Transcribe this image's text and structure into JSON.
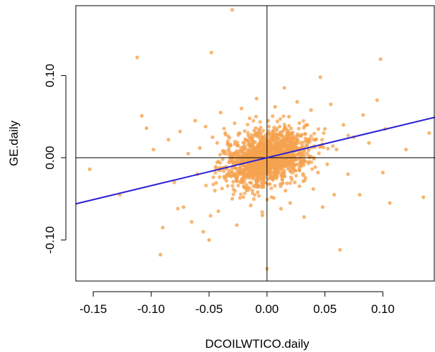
{
  "chart_data": {
    "type": "scatter",
    "title": "",
    "xlabel": "DCOILWTICO.daily",
    "ylabel": "GE.daily",
    "xlim": [
      -0.165,
      0.145
    ],
    "ylim": [
      -0.15,
      0.185
    ],
    "xticks": [
      -0.15,
      -0.1,
      -0.05,
      0.0,
      0.05,
      0.1
    ],
    "xtick_labels": [
      "-0.15",
      "-0.10",
      "-0.05",
      "0.00",
      "0.05",
      "0.10"
    ],
    "yticks": [
      -0.1,
      0.0,
      0.1
    ],
    "ytick_labels": [
      "-0.10",
      "0.00",
      "0.10"
    ],
    "reference_lines": {
      "x": 0,
      "y": 0
    },
    "regression": {
      "intercept": 0.0,
      "slope": 0.34
    },
    "colors": {
      "points": "#f5a24e",
      "regression": "#2a1fd6",
      "axes": "#000000"
    },
    "grid": false,
    "legend": "none",
    "points": [
      [
        -0.153,
        -0.014
      ],
      [
        -0.127,
        -0.045
      ],
      [
        -0.112,
        0.122
      ],
      [
        -0.108,
        0.051
      ],
      [
        -0.104,
        0.036
      ],
      [
        -0.098,
        0.01
      ],
      [
        -0.09,
        -0.085
      ],
      [
        -0.092,
        -0.118
      ],
      [
        -0.085,
        0.022
      ],
      [
        -0.08,
        -0.03
      ],
      [
        -0.075,
        0.032
      ],
      [
        -0.072,
        -0.06
      ],
      [
        -0.068,
        0.005
      ],
      [
        -0.065,
        -0.078
      ],
      [
        -0.062,
        0.045
      ],
      [
        -0.06,
        -0.02
      ],
      [
        -0.058,
        0.012
      ],
      [
        -0.055,
        -0.09
      ],
      [
        -0.053,
        0.038
      ],
      [
        -0.05,
        -0.1
      ],
      [
        -0.048,
        0.128
      ],
      [
        -0.047,
        0.025
      ],
      [
        -0.045,
        -0.04
      ],
      [
        -0.043,
        0.018
      ],
      [
        -0.042,
        -0.065
      ],
      [
        -0.04,
        0.055
      ],
      [
        -0.038,
        -0.012
      ],
      [
        -0.036,
        0.03
      ],
      [
        -0.035,
        -0.028
      ],
      [
        -0.033,
        0.008
      ],
      [
        -0.03,
        0.18
      ],
      [
        -0.03,
        -0.05
      ],
      [
        -0.028,
        0.042
      ],
      [
        -0.026,
        -0.082
      ],
      [
        -0.025,
        0.015
      ],
      [
        -0.024,
        -0.018
      ],
      [
        -0.022,
        0.06
      ],
      [
        -0.02,
        -0.035
      ],
      [
        -0.018,
        0.022
      ],
      [
        -0.016,
        -0.008
      ],
      [
        -0.015,
        0.048
      ],
      [
        -0.014,
        -0.058
      ],
      [
        -0.013,
        0.004
      ],
      [
        -0.012,
        -0.022
      ],
      [
        -0.011,
        0.033
      ],
      [
        -0.01,
        -0.004
      ],
      [
        -0.009,
        0.072
      ],
      [
        -0.008,
        -0.042
      ],
      [
        -0.007,
        0.011
      ],
      [
        -0.006,
        -0.015
      ],
      [
        -0.005,
        0.026
      ],
      [
        -0.004,
        -0.07
      ],
      [
        -0.003,
        0.003
      ],
      [
        -0.002,
        -0.03
      ],
      [
        -0.001,
        0.018
      ],
      [
        0.0,
        -0.135
      ],
      [
        0.001,
        0.045
      ],
      [
        0.002,
        -0.012
      ],
      [
        0.003,
        0.008
      ],
      [
        0.004,
        -0.048
      ],
      [
        0.005,
        0.032
      ],
      [
        0.006,
        -0.002
      ],
      [
        0.007,
        0.062
      ],
      [
        0.008,
        -0.025
      ],
      [
        0.009,
        0.014
      ],
      [
        0.01,
        -0.01
      ],
      [
        0.011,
        0.038
      ],
      [
        0.012,
        -0.062
      ],
      [
        0.013,
        0.006
      ],
      [
        0.014,
        -0.02
      ],
      [
        0.015,
        0.085
      ],
      [
        0.016,
        -0.04
      ],
      [
        0.017,
        0.02
      ],
      [
        0.018,
        -0.008
      ],
      [
        0.019,
        0.05
      ],
      [
        0.02,
        -0.055
      ],
      [
        0.022,
        0.012
      ],
      [
        0.024,
        -0.03
      ],
      [
        0.026,
        0.068
      ],
      [
        0.028,
        -0.015
      ],
      [
        0.03,
        0.028
      ],
      [
        0.032,
        -0.072
      ],
      [
        0.034,
        0.04
      ],
      [
        0.036,
        -0.005
      ],
      [
        0.038,
        0.058
      ],
      [
        0.04,
        -0.038
      ],
      [
        0.042,
        0.022
      ],
      [
        0.044,
        -0.018
      ],
      [
        0.046,
        0.098
      ],
      [
        0.048,
        -0.06
      ],
      [
        0.05,
        0.035
      ],
      [
        0.052,
        -0.008
      ],
      [
        0.055,
        0.065
      ],
      [
        0.058,
        -0.045
      ],
      [
        0.06,
        0.01
      ],
      [
        0.063,
        -0.112
      ],
      [
        0.066,
        0.04
      ],
      [
        0.07,
        -0.02
      ],
      [
        0.075,
        0.025
      ],
      [
        0.08,
        -0.045
      ],
      [
        0.083,
        0.052
      ],
      [
        0.088,
        0.018
      ],
      [
        0.095,
        0.07
      ],
      [
        0.098,
        0.12
      ],
      [
        0.1,
        -0.018
      ],
      [
        0.102,
        0.035
      ],
      [
        0.106,
        -0.055
      ],
      [
        0.12,
        0.01
      ],
      [
        0.135,
        -0.048
      ],
      [
        0.14,
        0.03
      ]
    ]
  }
}
